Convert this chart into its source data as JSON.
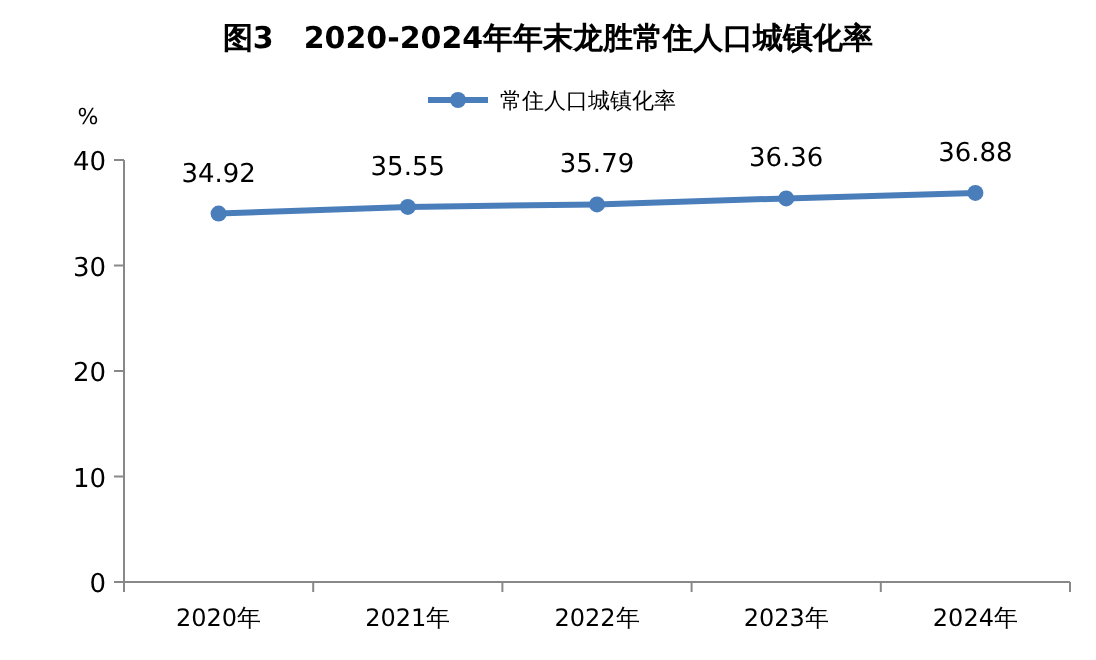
{
  "chart_data": {
    "type": "line",
    "title": "图3　2020-2024年年末龙胜常住人口城镇化率",
    "ylabel": "%",
    "categories": [
      "2020年",
      "2021年",
      "2022年",
      "2023年",
      "2024年"
    ],
    "series": [
      {
        "name": "常住人口城镇化率",
        "color": "#4a7ebb",
        "values": [
          34.92,
          35.55,
          35.79,
          36.36,
          36.88
        ]
      }
    ],
    "ylim": [
      0,
      40
    ],
    "yticks": [
      0,
      10,
      20,
      30,
      40
    ],
    "data_labels": true,
    "legend": "top",
    "marker": "circle"
  }
}
